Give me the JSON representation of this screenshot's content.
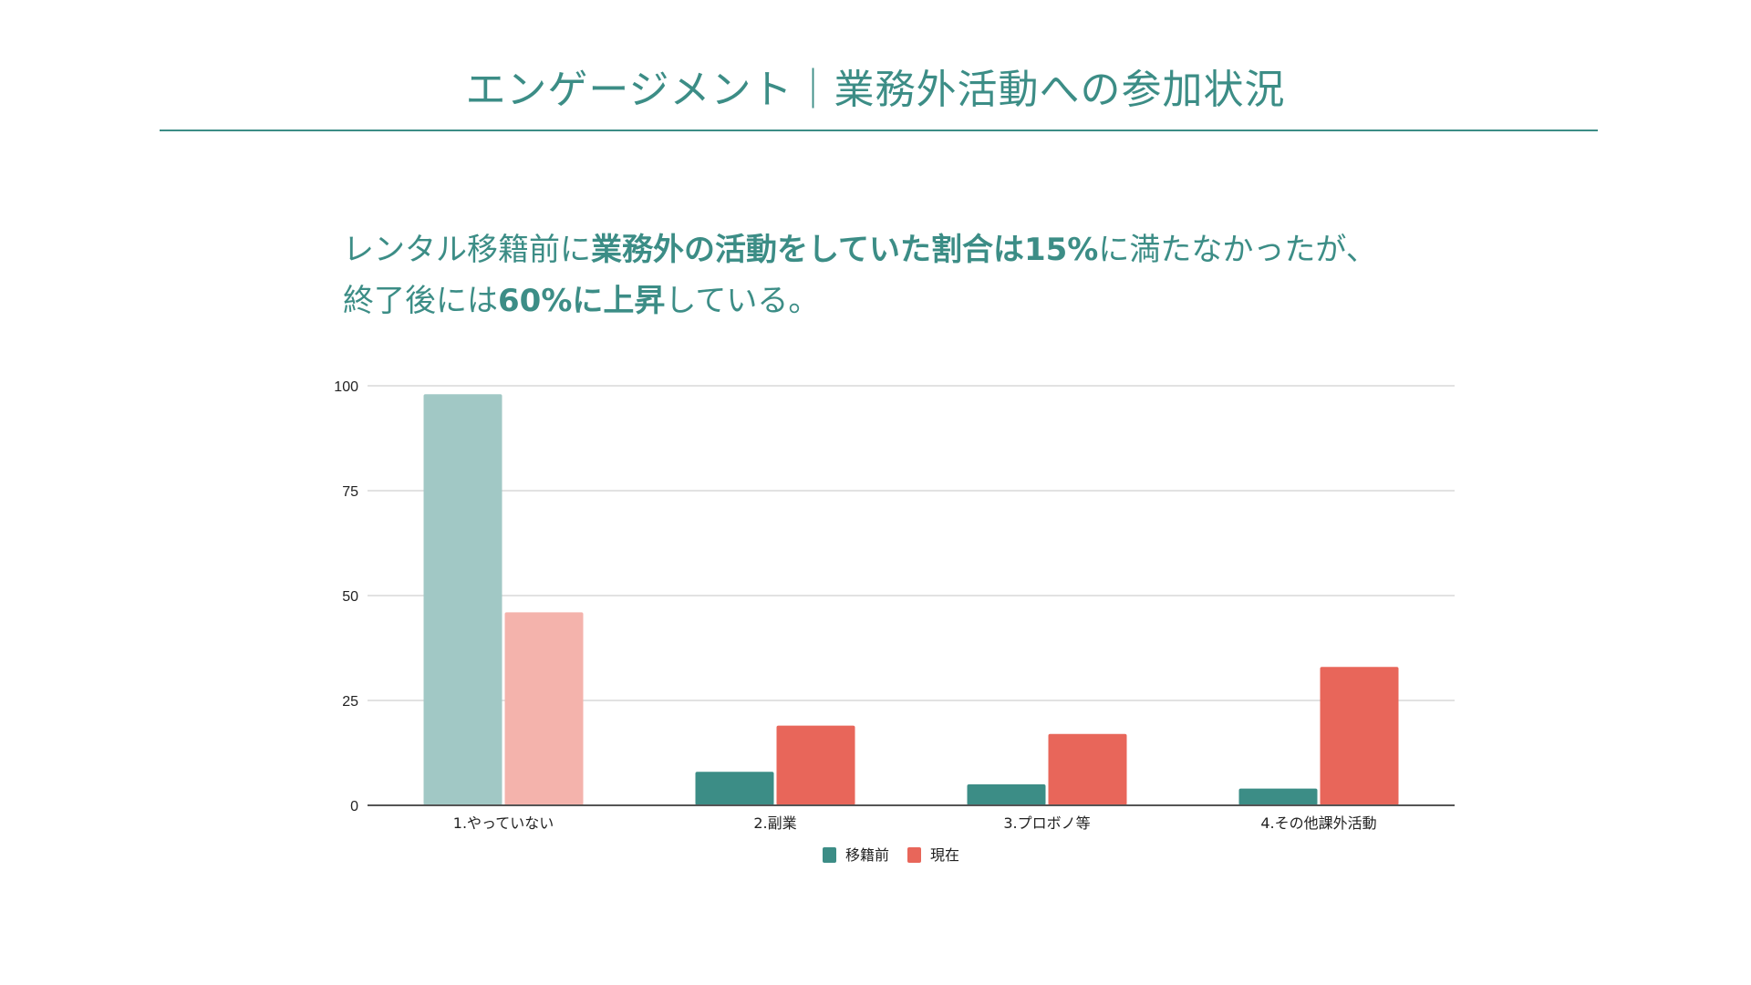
{
  "slide": {
    "title": "エンゲージメント｜業務外活動への参加状況",
    "subtitle": {
      "line1": [
        {
          "text": "レンタル移籍前に",
          "bold": false
        },
        {
          "text": "業務外の活動をしていた割合は15%",
          "bold": true
        },
        {
          "text": "に満たなかったが、",
          "bold": false
        }
      ],
      "line2": [
        {
          "text": "終了後には",
          "bold": false
        },
        {
          "text": "60%に上昇",
          "bold": true
        },
        {
          "text": "している。",
          "bold": false
        }
      ]
    }
  },
  "colors": {
    "accent": "#3c8d86",
    "before": "#3c8d86",
    "now": "#e8665a",
    "before_faded": "#a1c8c5",
    "now_faded": "#f4b3ac",
    "grid": "#d9d9d9",
    "axis": "#555555"
  },
  "chart_data": {
    "type": "bar",
    "categories": [
      "1.やっていない",
      "2.副業",
      "3.プロボノ等",
      "4.その他課外活動"
    ],
    "series": [
      {
        "name": "移籍前",
        "values": [
          98,
          8,
          5,
          4
        ]
      },
      {
        "name": "現在",
        "values": [
          46,
          19,
          17,
          33
        ]
      }
    ],
    "ylim": [
      0,
      100
    ],
    "yticks": [
      0,
      25,
      50,
      75,
      100
    ],
    "grid": true,
    "legend": "bottom-center",
    "highlighted_category_faded": 0
  }
}
